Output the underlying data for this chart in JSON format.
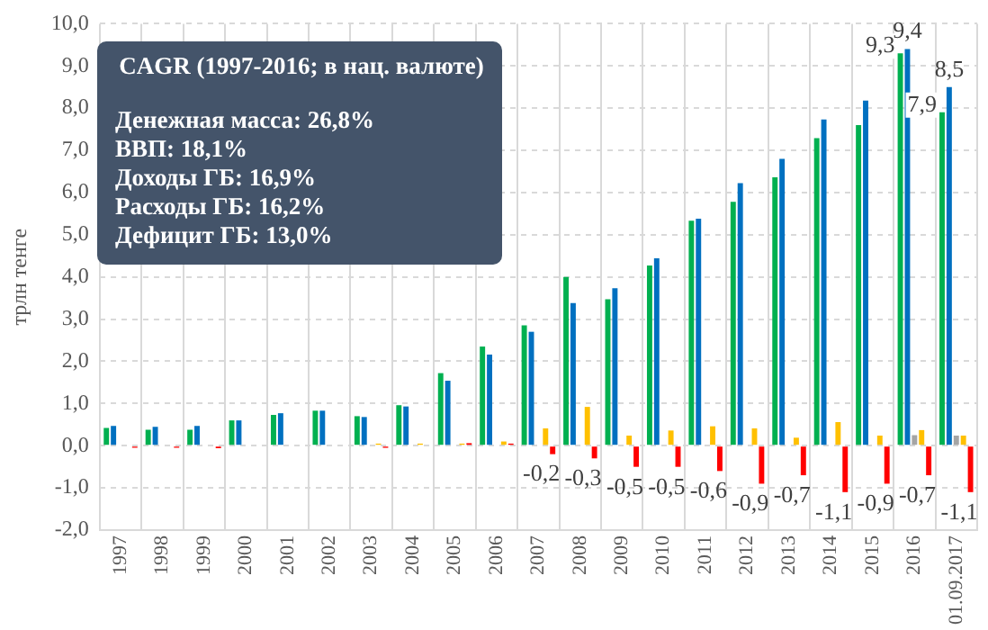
{
  "chart_data": {
    "type": "bar",
    "ylabel": "трлн тенге",
    "categories": [
      "1997",
      "1998",
      "1999",
      "2000",
      "2001",
      "2002",
      "2003",
      "2004",
      "2005",
      "2006",
      "2007",
      "2008",
      "2009",
      "2010",
      "2011",
      "2012",
      "2013",
      "2014",
      "2015",
      "2016",
      "01.09.2017"
    ],
    "series": [
      {
        "color": "#00b050",
        "values": [
          0.42,
          0.38,
          0.38,
          0.6,
          0.73,
          0.83,
          0.7,
          0.96,
          1.72,
          2.35,
          2.85,
          4.0,
          3.47,
          4.27,
          5.33,
          5.78,
          6.36,
          7.29,
          7.6,
          9.3,
          7.9
        ],
        "value_labels": [
          null,
          null,
          null,
          null,
          null,
          null,
          null,
          null,
          null,
          null,
          null,
          null,
          null,
          null,
          null,
          null,
          null,
          null,
          null,
          "9,3",
          "7,9"
        ]
      },
      {
        "color": "#0070c0",
        "values": [
          0.47,
          0.45,
          0.47,
          0.6,
          0.77,
          0.83,
          0.68,
          0.93,
          1.54,
          2.16,
          2.7,
          3.38,
          3.73,
          4.44,
          5.38,
          6.22,
          6.8,
          7.73,
          8.18,
          9.4,
          8.5
        ],
        "value_labels": [
          null,
          null,
          null,
          null,
          null,
          null,
          null,
          null,
          null,
          null,
          null,
          null,
          null,
          null,
          null,
          null,
          null,
          null,
          null,
          "9,4",
          "8,5"
        ]
      },
      {
        "color": "#a5a5a5",
        "values": [
          null,
          null,
          null,
          null,
          null,
          null,
          null,
          null,
          null,
          null,
          null,
          null,
          null,
          null,
          null,
          null,
          null,
          null,
          null,
          0.25,
          0.24
        ]
      },
      {
        "color": "#ffc000",
        "values": [
          null,
          null,
          null,
          null,
          null,
          null,
          0.05,
          0.05,
          0.05,
          0.1,
          0.41,
          0.92,
          0.24,
          0.36,
          0.46,
          0.41,
          0.19,
          0.56,
          0.24,
          0.37,
          0.24
        ]
      },
      {
        "color": "#ff0000",
        "values": [
          -0.05,
          -0.05,
          -0.06,
          null,
          null,
          null,
          -0.05,
          null,
          0.06,
          0.05,
          -0.2,
          -0.3,
          -0.5,
          -0.5,
          -0.6,
          -0.9,
          -0.7,
          -1.1,
          -0.9,
          -0.7,
          -1.1
        ],
        "value_labels": [
          null,
          null,
          null,
          null,
          null,
          null,
          null,
          null,
          null,
          null,
          "-0,2",
          "-0,3",
          "-0,5",
          "-0,5",
          "-0,6",
          "-0,9",
          "-0,7",
          "-1,1",
          "-0,9",
          "-0,7",
          "-1,1"
        ]
      }
    ],
    "ylim": [
      -2,
      10
    ],
    "yticks": [
      {
        "value": -2,
        "label": "-2,0"
      },
      {
        "value": -1,
        "label": "-1,0"
      },
      {
        "value": 0,
        "label": "0,0"
      },
      {
        "value": 1,
        "label": "1,0"
      },
      {
        "value": 2,
        "label": "2,0"
      },
      {
        "value": 3,
        "label": "3,0"
      },
      {
        "value": 4,
        "label": "4,0"
      },
      {
        "value": 5,
        "label": "5,0"
      },
      {
        "value": 6,
        "label": "6,0"
      },
      {
        "value": 7,
        "label": "7,0"
      },
      {
        "value": 8,
        "label": "8,0"
      },
      {
        "value": 9,
        "label": "9,0"
      },
      {
        "value": 10,
        "label": "10,0"
      }
    ],
    "grid": true,
    "legend": false,
    "annotations": [
      "CAGR (1997-2016; в нац. валюте)",
      "Денежная масса: 26,8%",
      "ВВП: 18,1%",
      "Доходы ГБ: 16,9%",
      "Расходы ГБ: 16,2%",
      "Дефицит ГБ: 13,0%"
    ]
  }
}
